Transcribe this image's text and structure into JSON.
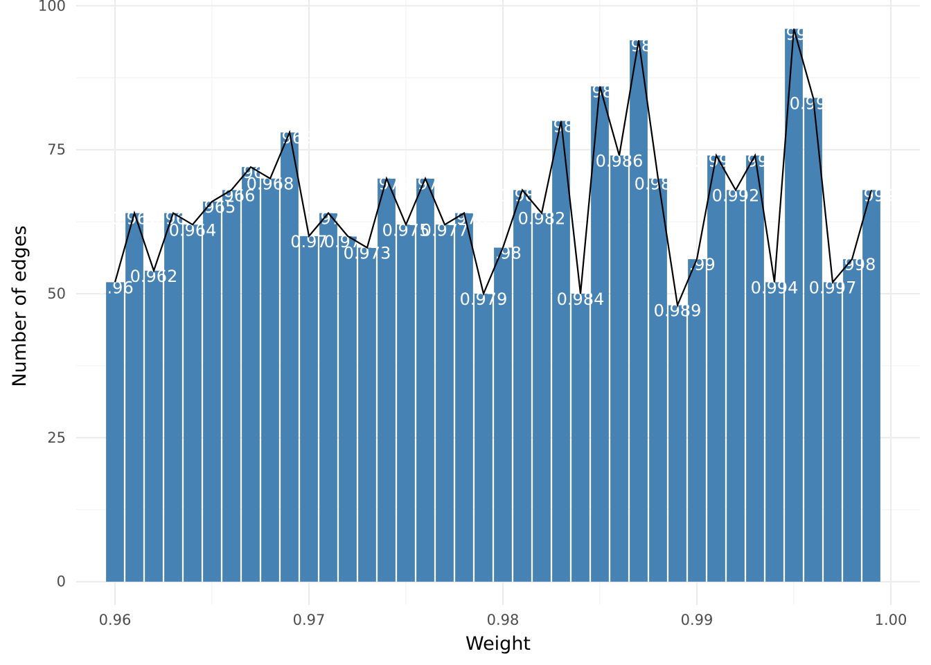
{
  "chart_data": {
    "type": "bar",
    "xlabel": "Weight",
    "ylabel": "Number of edges",
    "xlim": [
      0.958,
      1.0015
    ],
    "ylim": [
      -4,
      101
    ],
    "x_ticks": [
      0.96,
      0.97,
      0.98,
      0.99,
      1.0
    ],
    "x_tick_labels": [
      "0.96",
      "0.97",
      "0.98",
      "0.99",
      "1.00"
    ],
    "y_ticks": [
      0,
      25,
      50,
      75,
      100
    ],
    "y_tick_labels": [
      "0",
      "25",
      "50",
      "75",
      "100"
    ],
    "grid": true,
    "bar_color": "#4682b4",
    "line_color": "#000000",
    "label_color": "#ffffff",
    "bar_width": 0.00092,
    "x": [
      0.96,
      0.961,
      0.962,
      0.963,
      0.964,
      0.965,
      0.966,
      0.967,
      0.968,
      0.969,
      0.97,
      0.971,
      0.972,
      0.973,
      0.974,
      0.975,
      0.976,
      0.977,
      0.978,
      0.979,
      0.98,
      0.981,
      0.982,
      0.983,
      0.984,
      0.985,
      0.986,
      0.987,
      0.988,
      0.989,
      0.99,
      0.991,
      0.992,
      0.993,
      0.994,
      0.995,
      0.996,
      0.997,
      0.998,
      0.999
    ],
    "values": [
      52,
      64,
      54,
      64,
      62,
      66,
      68,
      72,
      70,
      78,
      60,
      64,
      60,
      58,
      70,
      62,
      70,
      62,
      64,
      50,
      58,
      68,
      64,
      80,
      50,
      86,
      74,
      94,
      70,
      48,
      56,
      74,
      68,
      74,
      52,
      96,
      84,
      52,
      56,
      68
    ],
    "labels": [
      "0.96",
      "0.961",
      "0.962",
      "0.963",
      "0.964",
      "0.965",
      "0.966",
      "0.967",
      "0.968",
      "0.969",
      "0.97",
      "0.971",
      "0.972",
      "0.973",
      "0.974",
      "0.975",
      "0.976",
      "0.977",
      "0.978",
      "0.979",
      "0.98",
      "0.981",
      "0.982",
      "0.983",
      "0.984",
      "0.985",
      "0.986",
      "0.987",
      "0.988",
      "0.989",
      "0.99",
      "0.991",
      "0.992",
      "0.993",
      "0.994",
      "0.995",
      "0.996",
      "0.997",
      "0.998",
      "0.999"
    ]
  }
}
